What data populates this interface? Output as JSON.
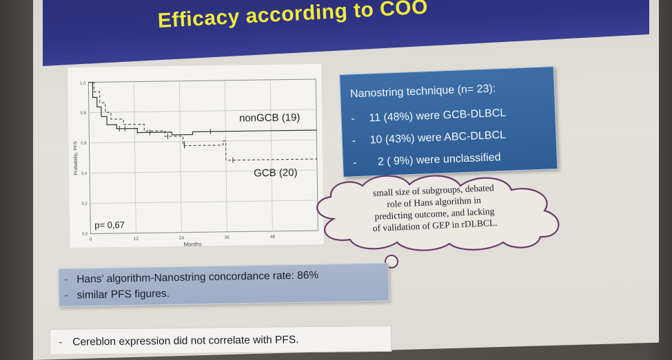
{
  "slide": {
    "title": "Efficacy according to COO"
  },
  "km_chart": {
    "ylabel": "Probability, PFS",
    "xlabel": "Months",
    "y_ticks": [
      "0,0",
      "0,2",
      "0,4",
      "0,6",
      "0,8",
      "1,0"
    ],
    "x_ticks": [
      "0",
      "12",
      "24",
      "36",
      "48"
    ],
    "label_nongcb": "nonGCB (19)",
    "label_gcb": "GCB (20)",
    "pvalue": "p= 0,67"
  },
  "info_box": {
    "heading": "Nanostring technique (n= 23):",
    "items": [
      {
        "dash": "-",
        "text": "11 (48%) were GCB-DLBCL"
      },
      {
        "dash": "-",
        "text": "10 (43%) were ABC-DLBCL"
      },
      {
        "dash": "-",
        "text": "2 ( 9%) were unclassified"
      }
    ]
  },
  "cloud_note": {
    "lines": [
      "small size of subgroups, debated",
      "role of Hans algorithm in",
      "predicting outcome, and lacking",
      "of validation of GEP in rDLBCL."
    ]
  },
  "concordance_box": {
    "items": [
      {
        "dash": "-",
        "text": "Hans’ algorithm-Nanostring concordance rate: 86%"
      },
      {
        "dash": "-",
        "text": "similar PFS figures."
      }
    ]
  },
  "cereblon_box": {
    "dash": "-",
    "text": "Cereblon expression did not correlate with PFS."
  },
  "colors": {
    "title_band": "#2f3385",
    "title_text": "#f0ec3a",
    "info_box": "#3d6fa6",
    "concordance_box": "#a9b6cc",
    "cloud_outline": "#6a3a6a"
  }
}
